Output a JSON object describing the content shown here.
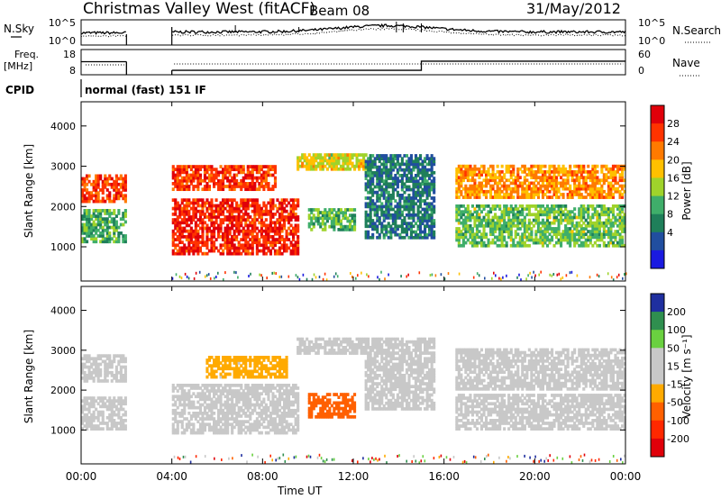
{
  "header": {
    "station": "Christmas Valley West (fitACF)",
    "beam": "Beam 08",
    "date": "31/May/2012"
  },
  "left_labels": {
    "nsky": "N.Sky",
    "freq_line1": "Freq.",
    "freq_line2": "[MHz]",
    "cpid": "CPID"
  },
  "right_labels": {
    "nsearch": "N.Search",
    "nave": "Nave"
  },
  "cpid_text": "normal (fast) 151 IF",
  "chart_data": [
    {
      "type": "line",
      "id": "noise",
      "left_ticks": [
        "10^5",
        "10^0"
      ],
      "right_ticks": [
        "10^5",
        "10^0"
      ],
      "series": [
        {
          "name": "N.Sky",
          "style": "solid"
        },
        {
          "name": "N.Search",
          "style": "dotted"
        }
      ],
      "data_gaps_ut": [
        [
          2.0,
          4.0
        ]
      ]
    },
    {
      "type": "line",
      "id": "freq_nave",
      "left_ticks": [
        "18",
        "8"
      ],
      "right_ticks": [
        "60",
        "0"
      ],
      "freq_steps": [
        {
          "from": 0.0,
          "to": 2.0,
          "value": 15.5
        },
        {
          "from": 4.0,
          "to": 15.0,
          "value": 10.2
        },
        {
          "from": 15.0,
          "to": 24.0,
          "value": 15.8
        }
      ]
    },
    {
      "type": "heatmap",
      "id": "power",
      "ylabel": "Slant Range [km]",
      "y_ticks": [
        1000,
        2000,
        3000,
        4000
      ],
      "ylim": [
        150,
        4600
      ],
      "colorbar": {
        "title": "Power [dB]",
        "ticks": [
          "28",
          "24",
          "20",
          "16",
          "12",
          "8",
          "4"
        ],
        "colors": [
          "#e0000a",
          "#ff3300",
          "#ff7a00",
          "#ffc000",
          "#9fd32b",
          "#3fae6a",
          "#1f7f5a",
          "#214e9f",
          "#1a1ae0"
        ]
      },
      "blocks": [
        {
          "t0": 0.0,
          "t1": 2.0,
          "r0": 2100,
          "r1": 2800,
          "v": 26
        },
        {
          "t0": 0.0,
          "t1": 2.0,
          "r0": 1100,
          "r1": 1900,
          "v": 12
        },
        {
          "t0": 4.0,
          "t1": 9.5,
          "r0": 800,
          "r1": 2200,
          "v": 28
        },
        {
          "t0": 4.0,
          "t1": 8.5,
          "r0": 2400,
          "r1": 3000,
          "v": 27
        },
        {
          "t0": 9.5,
          "t1": 12.5,
          "r0": 2900,
          "r1": 3300,
          "v": 18
        },
        {
          "t0": 10.0,
          "t1": 12.0,
          "r0": 1400,
          "r1": 1900,
          "v": 13
        },
        {
          "t0": 12.5,
          "t1": 15.5,
          "r0": 1200,
          "r1": 3300,
          "v": 8
        },
        {
          "t0": 16.5,
          "t1": 24.0,
          "r0": 2200,
          "r1": 3000,
          "v": 22
        },
        {
          "t0": 16.5,
          "t1": 24.0,
          "r0": 1000,
          "r1": 2000,
          "v": 14
        }
      ]
    },
    {
      "type": "heatmap",
      "id": "velocity",
      "ylabel": "Slant Range [km]",
      "xlabel": "Time UT",
      "x_ticks": [
        "00:00",
        "04:00",
        "08:00",
        "12:00",
        "16:00",
        "20:00",
        "00:00"
      ],
      "xlim": [
        0,
        24
      ],
      "y_ticks": [
        1000,
        2000,
        3000,
        4000
      ],
      "ylim": [
        150,
        4600
      ],
      "colorbar": {
        "title": "Velocity [m s⁻¹]",
        "ticks": [
          "200",
          "100",
          "50",
          "15",
          "-15",
          "-50",
          "-100",
          "-200"
        ],
        "colors": [
          "#1f2f9f",
          "#2f8f4f",
          "#6ad040",
          "#c8c8c8",
          "#c8c8c8",
          "#ffaa00",
          "#ff6000",
          "#ff2800",
          "#e0000a"
        ]
      },
      "blocks": [
        {
          "t0": 0.0,
          "t1": 2.0,
          "r0": 2200,
          "r1": 2900,
          "v": 0
        },
        {
          "t0": 0.0,
          "t1": 2.0,
          "r0": 1000,
          "r1": 1800,
          "v": 0
        },
        {
          "t0": 4.0,
          "t1": 9.5,
          "r0": 900,
          "r1": 2100,
          "v": 0
        },
        {
          "t0": 5.5,
          "t1": 9.0,
          "r0": 2300,
          "r1": 2800,
          "v": -40
        },
        {
          "t0": 9.5,
          "t1": 12.5,
          "r0": 2900,
          "r1": 3300,
          "v": 0
        },
        {
          "t0": 10.0,
          "t1": 12.0,
          "r0": 1300,
          "r1": 1900,
          "v": -100
        },
        {
          "t0": 12.5,
          "t1": 15.5,
          "r0": 1500,
          "r1": 3300,
          "v": 40
        },
        {
          "t0": 16.5,
          "t1": 24.0,
          "r0": 2000,
          "r1": 3000,
          "v": 0
        },
        {
          "t0": 16.5,
          "t1": 24.0,
          "r0": 1000,
          "r1": 1900,
          "v": 0
        }
      ]
    }
  ]
}
